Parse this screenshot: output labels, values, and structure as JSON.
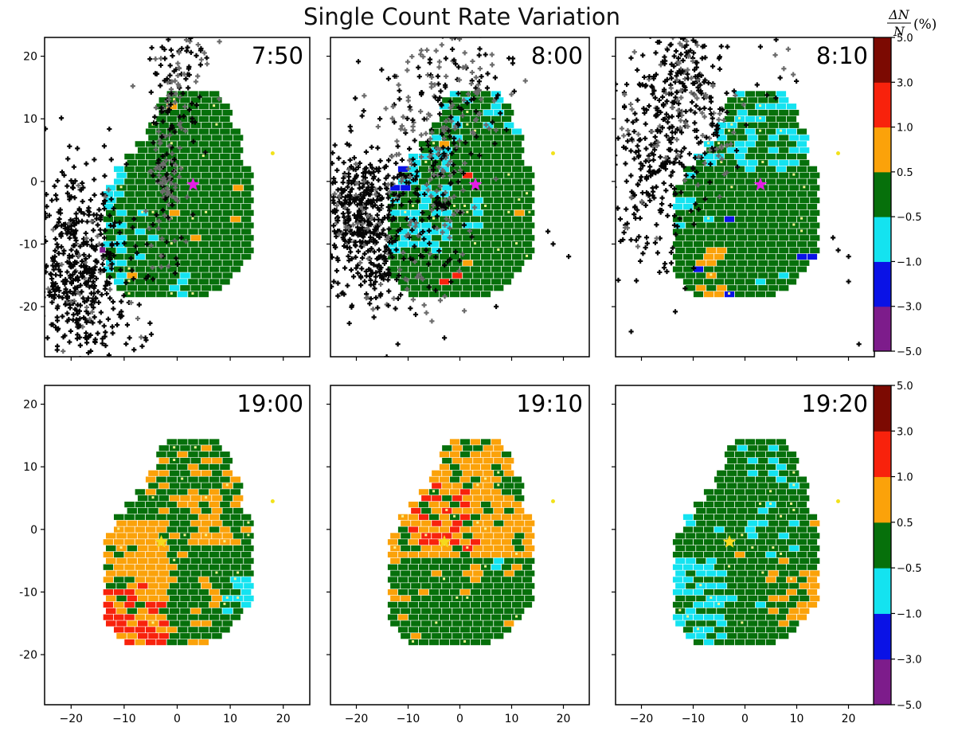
{
  "chart_data": {
    "type": "heatmap",
    "title": "Single Count Rate Variation",
    "colorbar_label": {
      "numerator": "ΔN",
      "denominator": "N",
      "unit": "(%)"
    },
    "colorbar": {
      "bins": [
        {
          "range": "-5.0 to -3.0",
          "color": "#7d1c8b"
        },
        {
          "range": "-3.0 to -1.0",
          "color": "#0a12e6"
        },
        {
          "range": "-1.0 to -0.5",
          "color": "#14e3f0"
        },
        {
          "range": "-0.5 to 0.5",
          "color": "#06700b"
        },
        {
          "range": "0.5 to 1.0",
          "color": "#fba20a"
        },
        {
          "range": "1.0 to 3.0",
          "color": "#f8220c"
        },
        {
          "range": "3.0 to 5.0",
          "color": "#7c0a02"
        }
      ],
      "tick_labels": [
        "-5.0",
        "-3.0",
        "-1.0",
        "-0.5",
        "0.5",
        "1.0",
        "3.0",
        "5.0"
      ]
    },
    "xlim": [
      -25,
      25
    ],
    "ylim": [
      -28,
      23
    ],
    "x_ticks": [
      -20,
      -10,
      0,
      10,
      20
    ],
    "y_ticks": [
      -20,
      -10,
      0,
      10,
      20
    ],
    "grid": false,
    "panels": [
      {
        "time": "7:50",
        "star": [
          3,
          -0.5
        ],
        "star_color": "#e51ee5",
        "dominant": "-0.5 to 0.5",
        "secondary": "-1.0 to -0.5 (west edge)",
        "cloud": "dense black/gray point cloud at lower-left (-25..-13, -27..-5) and gray band along x≈-3..0"
      },
      {
        "time": "8:00",
        "star": [
          3,
          -0.5
        ],
        "star_color": "#e51ee5",
        "dominant": "-0.5 to 0.5",
        "secondary": "-1.0 to -0.5 and -3.0 to -1.0 near (-10..0, 0..-10)",
        "cloud": "black/gray point cloud covering left half and top"
      },
      {
        "time": "8:10",
        "star": [
          3,
          -0.5
        ],
        "star_color": "#e51ee5",
        "dominant": "-0.5 to 0.5",
        "secondary": "-1.0 to -0.5 in upper part",
        "cloud": "black/gray point cloud upper-left"
      },
      {
        "time": "19:00",
        "star": [
          -3,
          -2
        ],
        "star_color": "#f6d91c",
        "dominant": "0.5 to 1.0 and -0.5 to 0.5",
        "secondary": "1.0 to 3.0 in lower-left",
        "cloud": "none"
      },
      {
        "time": "19:10",
        "star": [
          -3,
          -2
        ],
        "star_color": "#f6d91c",
        "dominant": "0.5 to 1.0 (upper) and -0.5 to 0.5 (lower)",
        "secondary": "1.0 to 3.0 near center-top",
        "cloud": "none"
      },
      {
        "time": "19:20",
        "star": [
          -3,
          -2
        ],
        "star_color": "#f6d91c",
        "dominant": "-0.5 to 0.5",
        "secondary": "-1.0 to -0.5 in lower-left, 0.5 to 3.0 lower-right",
        "cloud": "none"
      }
    ],
    "detector_point": [
      18,
      4.5
    ],
    "colors": {
      "cloud_black": "#050505",
      "cloud_gray": "#6b6b6b",
      "gap_yellow": "#f7f291"
    }
  }
}
